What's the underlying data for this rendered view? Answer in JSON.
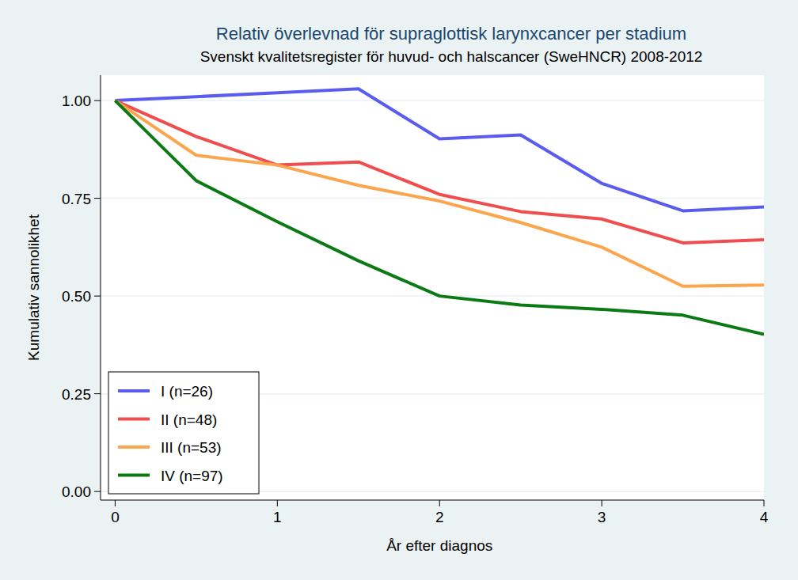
{
  "chart_data": {
    "type": "line",
    "title": "Relativ överlevnad för supraglottisk larynxcancer per stadium",
    "subtitle": "Svenskt kvalitetsregister för huvud- och halscancer (SweHNCR) 2008-2012",
    "x_label": "År efter diagnos",
    "y_label": "Kumulativ sannolikhet",
    "x": [
      0,
      0.5,
      1,
      1.5,
      2,
      2.5,
      3,
      3.5,
      4
    ],
    "series": [
      {
        "name": "I (n=26)",
        "color": "#5a5cf0",
        "values": [
          1.0,
          1.01,
          1.02,
          1.03,
          0.902,
          0.912,
          0.788,
          0.718,
          0.728
        ]
      },
      {
        "name": "II (n=48)",
        "color": "#f04e4e",
        "values": [
          1.0,
          0.908,
          0.835,
          0.843,
          0.76,
          0.716,
          0.697,
          0.636,
          0.644
        ]
      },
      {
        "name": "III (n=53)",
        "color": "#fba64e",
        "values": [
          1.0,
          0.86,
          0.835,
          0.783,
          0.743,
          0.688,
          0.625,
          0.525,
          0.528
        ]
      },
      {
        "name": "IV (n=97)",
        "color": "#0b7a14",
        "values": [
          1.0,
          0.795,
          0.69,
          0.59,
          0.5,
          0.477,
          0.466,
          0.451,
          0.402
        ]
      }
    ],
    "xlim": [
      -0.09,
      4
    ],
    "ylim": [
      -0.022,
      1.065
    ],
    "xticks": [
      0,
      1,
      2,
      3,
      4
    ],
    "yticks": [
      {
        "value": 0,
        "label": "0.00"
      },
      {
        "value": 0.25,
        "label": "0.25"
      },
      {
        "value": 0.5,
        "label": "0.50"
      },
      {
        "value": 0.75,
        "label": "0.75"
      },
      {
        "value": 1,
        "label": "1.00"
      }
    ],
    "grid": true,
    "legend": "bottom-left"
  }
}
